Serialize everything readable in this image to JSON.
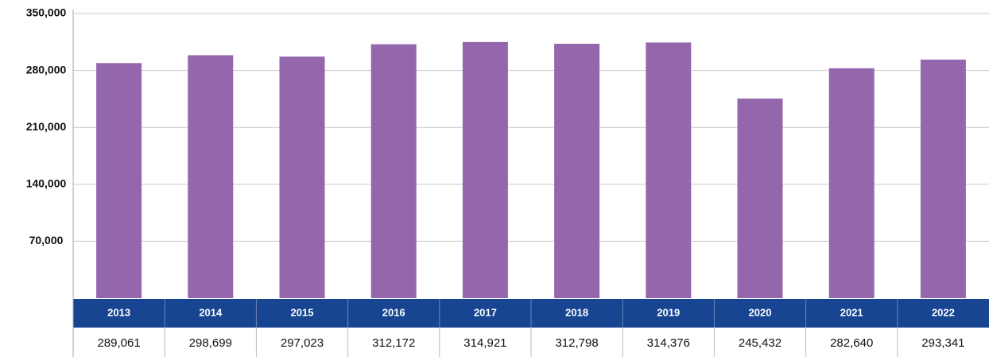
{
  "chart_data": {
    "type": "bar",
    "categories": [
      "2013",
      "2014",
      "2015",
      "2016",
      "2017",
      "2018",
      "2019",
      "2020",
      "2021",
      "2022"
    ],
    "values": [
      289061,
      298699,
      297023,
      312172,
      314921,
      312798,
      314376,
      245432,
      282640,
      293341
    ],
    "value_labels": [
      "289,061",
      "298,699",
      "297,023",
      "312,172",
      "314,921",
      "312,798",
      "314,376",
      "245,432",
      "282,640",
      "293,341"
    ],
    "color": "#9467ad",
    "ylim": [
      0,
      350000
    ],
    "yticks": [
      {
        "value": 70000,
        "label": "70,000"
      },
      {
        "value": 140000,
        "label": "140,000"
      },
      {
        "value": 210000,
        "label": "210,000"
      },
      {
        "value": 280000,
        "label": "280,000"
      },
      {
        "value": 350000,
        "label": "350,000"
      }
    ],
    "grid": true
  }
}
